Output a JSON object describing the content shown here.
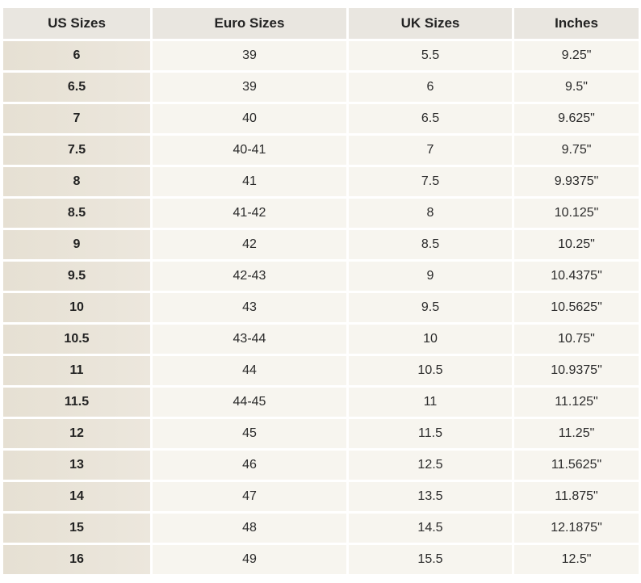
{
  "table": {
    "header": [
      "US Sizes",
      "Euro Sizes",
      "UK Sizes",
      "Inches"
    ],
    "rows": [
      [
        "6",
        "39",
        "5.5",
        "9.25\""
      ],
      [
        "6.5",
        "39",
        "6",
        "9.5\""
      ],
      [
        "7",
        "40",
        "6.5",
        "9.625\""
      ],
      [
        "7.5",
        "40-41",
        "7",
        "9.75\""
      ],
      [
        "8",
        "41",
        "7.5",
        "9.9375\""
      ],
      [
        "8.5",
        "41-42",
        "8",
        "10.125\""
      ],
      [
        "9",
        "42",
        "8.5",
        "10.25\""
      ],
      [
        "9.5",
        "42-43",
        "9",
        "10.4375\""
      ],
      [
        "10",
        "43",
        "9.5",
        "10.5625\""
      ],
      [
        "10.5",
        "43-44",
        "10",
        "10.75\""
      ],
      [
        "11",
        "44",
        "10.5",
        "10.9375\""
      ],
      [
        "11.5",
        "44-45",
        "11",
        "11.125\""
      ],
      [
        "12",
        "45",
        "11.5",
        "11.25\""
      ],
      [
        "13",
        "46",
        "12.5",
        "11.5625\""
      ],
      [
        "14",
        "47",
        "13.5",
        "11.875\""
      ],
      [
        "15",
        "48",
        "14.5",
        "12.1875\""
      ],
      [
        "16",
        "49",
        "15.5",
        "12.5\""
      ]
    ]
  }
}
